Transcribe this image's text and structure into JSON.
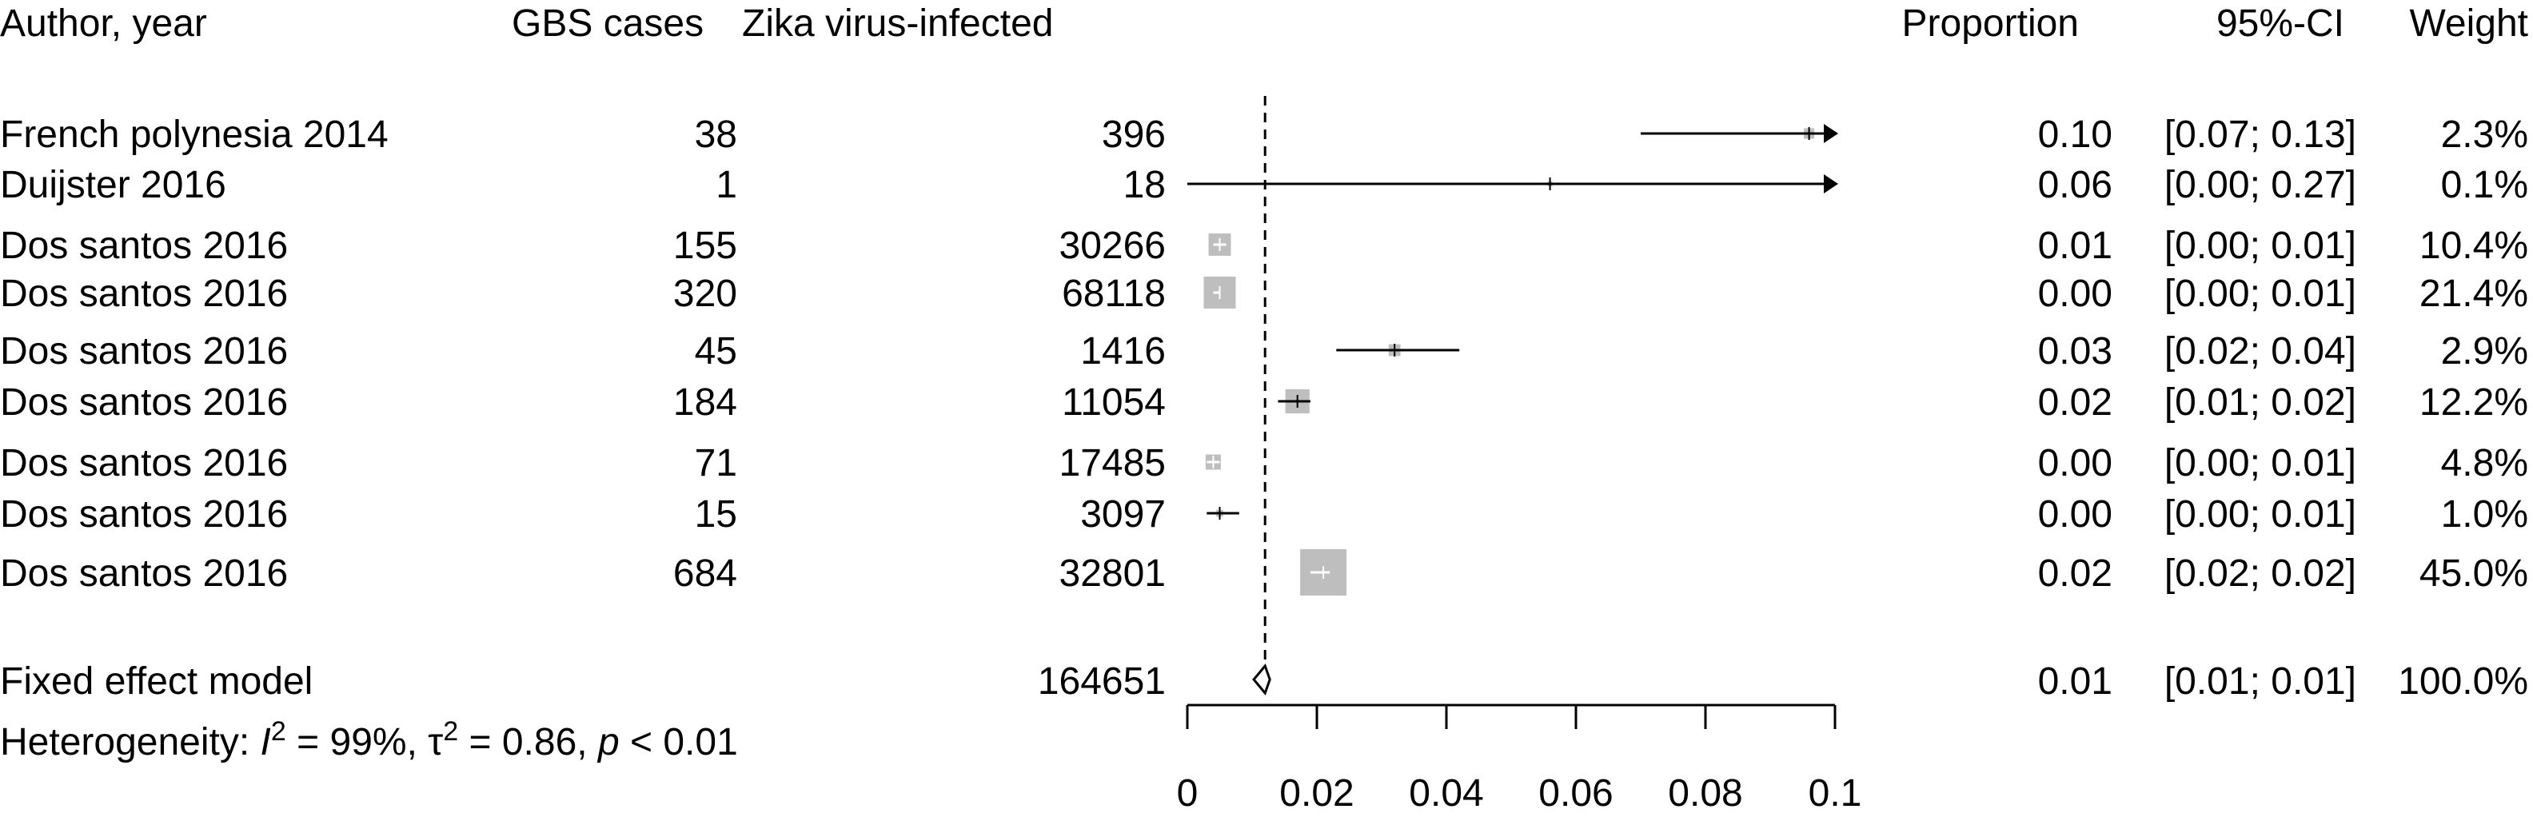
{
  "chart_data": {
    "type": "forest",
    "columns": {
      "author": "Author, year",
      "cases": "GBS cases",
      "total": "Zika virus-infected",
      "proportion": "Proportion",
      "ci": "95%-CI",
      "weight": "Weight"
    },
    "studies": [
      {
        "author": "French polynesia 2014",
        "cases": "38",
        "total": "396",
        "proportion": 0.096,
        "ci_low": 0.07,
        "ci_high": 0.13,
        "prop_text": "0.10",
        "ci_text": "[0.07; 0.13]",
        "weight": "2.3%"
      },
      {
        "author": "Duijster 2016",
        "cases": "1",
        "total": "18",
        "proportion": 0.056,
        "ci_low": 0.0,
        "ci_high": 0.27,
        "prop_text": "0.06",
        "ci_text": "[0.00; 0.27]",
        "weight": "0.1%"
      },
      {
        "author": "Dos santos 2016",
        "cases": "155",
        "total": "30266",
        "proportion": 0.005,
        "ci_low": 0.004,
        "ci_high": 0.006,
        "prop_text": "0.01",
        "ci_text": "[0.00; 0.01]",
        "weight": "10.4%"
      },
      {
        "author": "Dos santos 2016",
        "cases": "320",
        "total": "68118",
        "proportion": 0.005,
        "ci_low": 0.004,
        "ci_high": 0.005,
        "prop_text": "0.00",
        "ci_text": "[0.00; 0.01]",
        "weight": "21.4%"
      },
      {
        "author": "Dos santos 2016",
        "cases": "45",
        "total": "1416",
        "proportion": 0.032,
        "ci_low": 0.023,
        "ci_high": 0.042,
        "prop_text": "0.03",
        "ci_text": "[0.02; 0.04]",
        "weight": "2.9%"
      },
      {
        "author": "Dos santos 2016",
        "cases": "184",
        "total": "11054",
        "proportion": 0.017,
        "ci_low": 0.014,
        "ci_high": 0.019,
        "prop_text": "0.02",
        "ci_text": "[0.01; 0.02]",
        "weight": "12.2%"
      },
      {
        "author": "Dos santos 2016",
        "cases": "71",
        "total": "17485",
        "proportion": 0.004,
        "ci_low": 0.003,
        "ci_high": 0.005,
        "prop_text": "0.00",
        "ci_text": "[0.00; 0.01]",
        "weight": "4.8%"
      },
      {
        "author": "Dos santos 2016",
        "cases": "15",
        "total": "3097",
        "proportion": 0.005,
        "ci_low": 0.003,
        "ci_high": 0.008,
        "prop_text": "0.00",
        "ci_text": "[0.00; 0.01]",
        "weight": "1.0%"
      },
      {
        "author": "Dos santos 2016",
        "cases": "684",
        "total": "32801",
        "proportion": 0.021,
        "ci_low": 0.019,
        "ci_high": 0.022,
        "prop_text": "0.02",
        "ci_text": "[0.02; 0.02]",
        "weight": "45.0%"
      }
    ],
    "summary": {
      "label": "Fixed effect model",
      "total": "164651",
      "estimate": 0.012,
      "ci_low": 0.011,
      "ci_high": 0.012,
      "prop_text": "0.01",
      "ci_text": "[0.01; 0.01]",
      "weight": "100.0%"
    },
    "heterogeneity": {
      "prefix": "Heterogeneity: ",
      "i2_symbol": "I",
      "i2_sup": "2",
      "i2_value": " = 99%, ",
      "tau_symbol": "τ",
      "tau_sup": "2",
      "tau_value": " = 0.86, ",
      "p_symbol": "p",
      "p_value": " < 0.01"
    },
    "x_axis": {
      "xlim": [
        0,
        0.1
      ],
      "ticks": [
        0,
        0.02,
        0.04,
        0.06,
        0.08,
        0.1
      ],
      "tick_labels": [
        "0",
        "0.02",
        "0.04",
        "0.06",
        "0.08",
        "0.1"
      ]
    },
    "reference_line": 0.012,
    "colors": {
      "square": "#bebebe",
      "line": "#000000",
      "square_line": "#ffffff"
    }
  }
}
